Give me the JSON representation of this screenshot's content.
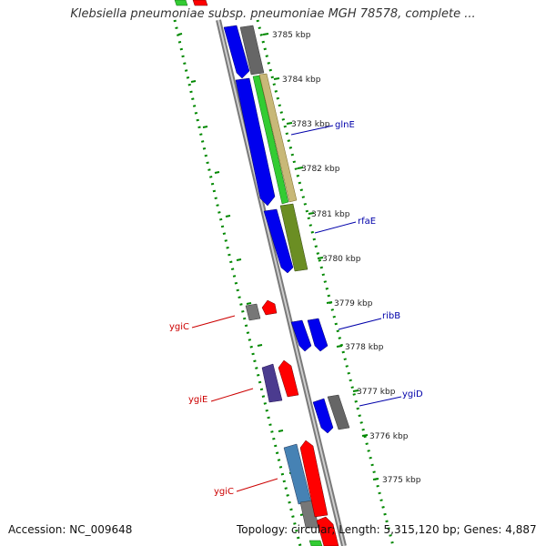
{
  "title": "Klebsiella pneumoniae subsp. pneumoniae MGH 78578, complete ...",
  "footer": {
    "accession": "Accession: NC_009648",
    "summary": "Topology: circular; Length: 5,315,120 bp; Genes: 4,887"
  },
  "colors": {
    "forward_gene": "#ff0000",
    "reverse_gene": "#0000ee",
    "other_gene": "#808080",
    "scale_ticks": "#007700",
    "backbone": "#888888"
  },
  "ruler": {
    "unit": "kbp",
    "ticks": [
      {
        "label": "3785 kbp",
        "value": 3785
      },
      {
        "label": "3784 kbp",
        "value": 3784
      },
      {
        "label": "3783 kbp",
        "value": 3783
      },
      {
        "label": "3782 kbp",
        "value": 3782
      },
      {
        "label": "3781 kbp",
        "value": 3781
      },
      {
        "label": "3780 kbp",
        "value": 3780
      },
      {
        "label": "3779 kbp",
        "value": 3779
      },
      {
        "label": "3778 kbp",
        "value": 3778
      },
      {
        "label": "3777 kbp",
        "value": 3777
      },
      {
        "label": "3776 kbp",
        "value": 3776
      },
      {
        "label": "3775 kbp",
        "value": 3775
      }
    ]
  },
  "gene_labels": [
    {
      "name": "glnE",
      "color": "#0000aa"
    },
    {
      "name": "rfaE",
      "color": "#0000aa"
    },
    {
      "name": "ribB",
      "color": "#0000aa"
    },
    {
      "name": "ygiD",
      "color": "#0000aa"
    },
    {
      "name": "ygiC",
      "color": "#cc0000"
    },
    {
      "name": "ygiE",
      "color": "#cc0000"
    },
    {
      "name": "ygiC",
      "color": "#cc0000"
    }
  ]
}
